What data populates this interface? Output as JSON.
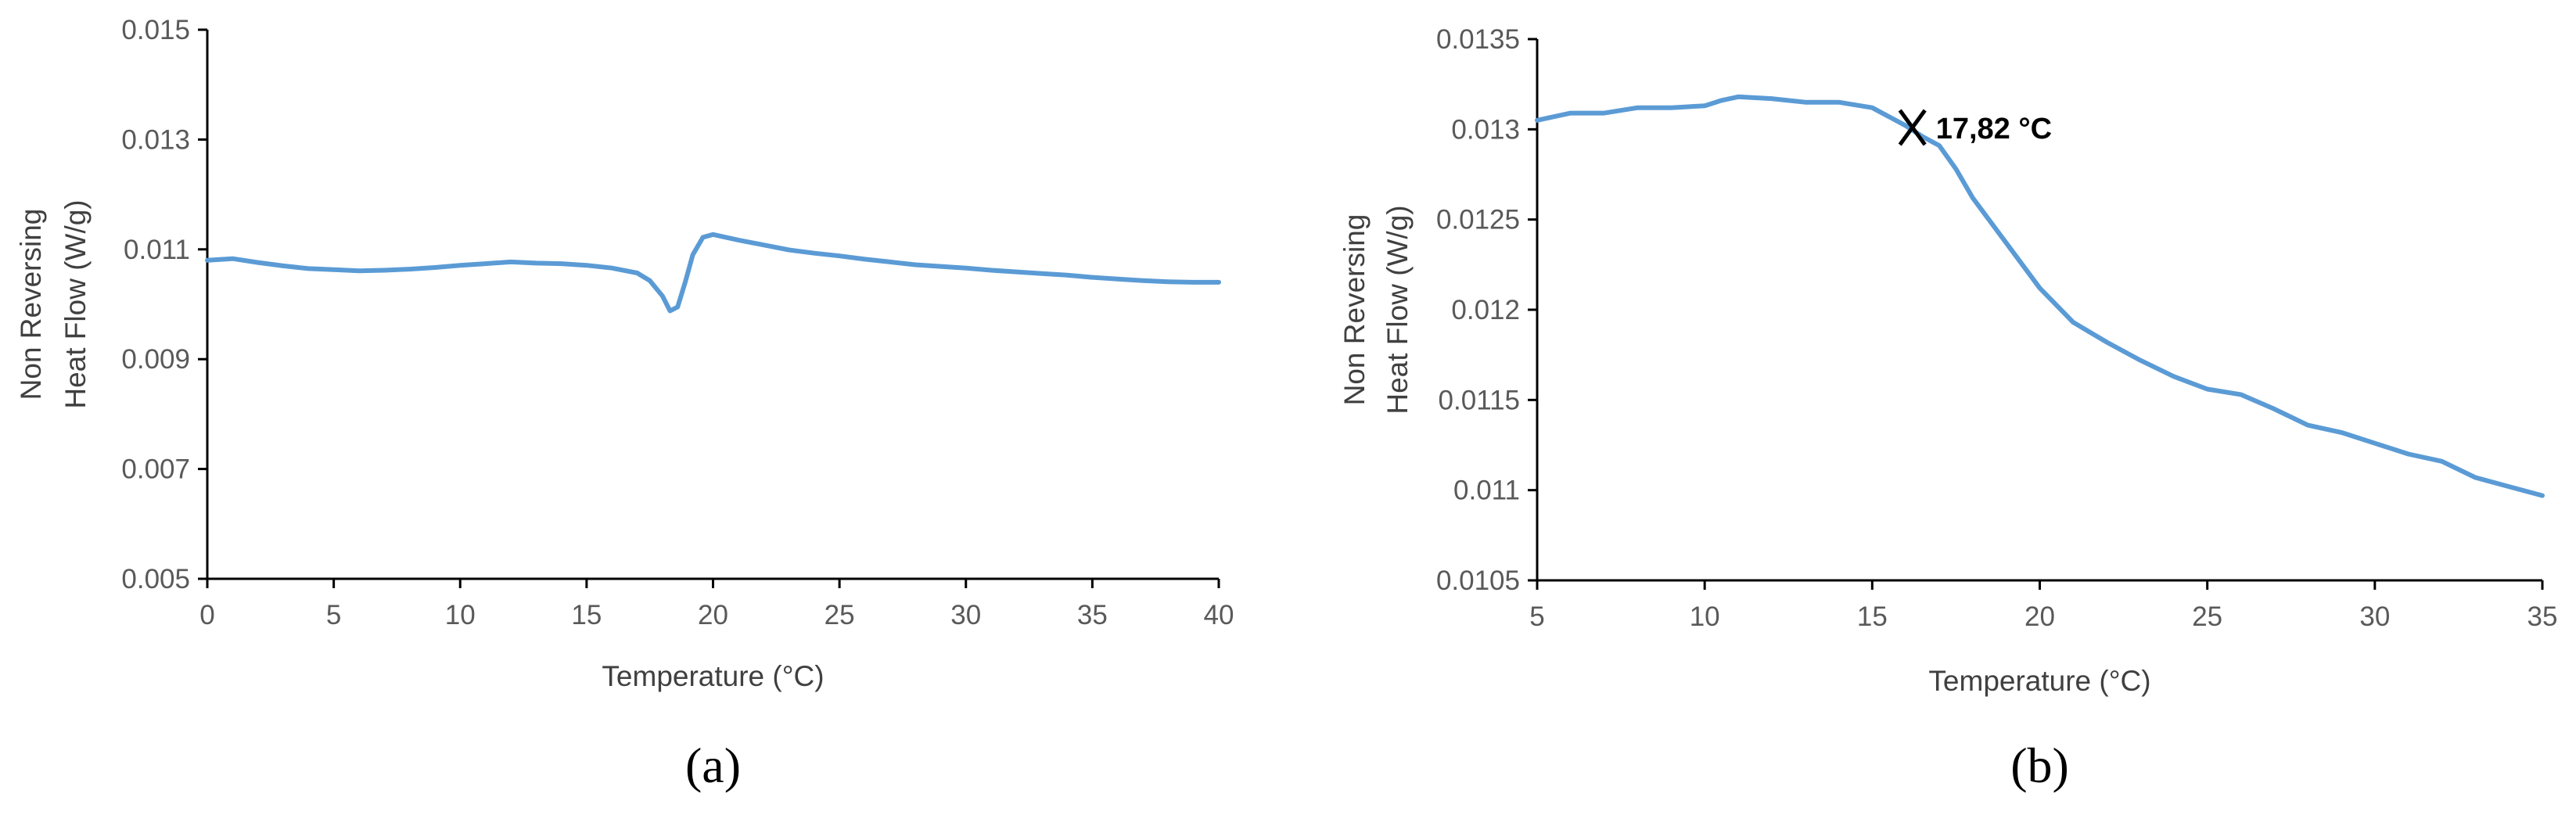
{
  "colors": {
    "series": "#5b9bd5",
    "axis": "#000000",
    "tick_text": "#595959",
    "marker": "#000000"
  },
  "chart_data": [
    {
      "type": "line",
      "panel_label": "(a)",
      "xlabel": "Temperature (°C)",
      "ylabel_lines": [
        "Non Reversing",
        "Heat Flow (W/g)"
      ],
      "xlim": [
        0,
        40
      ],
      "ylim": [
        0.005,
        0.015
      ],
      "xticks": [
        0,
        5,
        10,
        15,
        20,
        25,
        30,
        35,
        40
      ],
      "xtick_labels": [
        "0",
        "5",
        "10",
        "15",
        "20",
        "25",
        "30",
        "35",
        "40"
      ],
      "yticks": [
        0.005,
        0.007,
        0.009,
        0.011,
        0.013,
        0.015
      ],
      "ytick_labels": [
        "0.005",
        "0.007",
        "0.009",
        "0.011",
        "0.013",
        "0.015"
      ],
      "grid": false,
      "series": [
        {
          "x": [
            0,
            1,
            2,
            3,
            4,
            5,
            6,
            7,
            8,
            9,
            10,
            11,
            12,
            13,
            14,
            15,
            16,
            17,
            17.5,
            18,
            18.3,
            18.6,
            18.9,
            19.2,
            19.6,
            20,
            21,
            22,
            23,
            24,
            25,
            26,
            27,
            28,
            29,
            30,
            31,
            32,
            33,
            34,
            35,
            36,
            37,
            38,
            39,
            40
          ],
          "y": [
            0.0108,
            0.01083,
            0.01076,
            0.0107,
            0.01065,
            0.01063,
            0.01061,
            0.01062,
            0.01064,
            0.01067,
            0.01071,
            0.01074,
            0.01077,
            0.01075,
            0.01074,
            0.01071,
            0.01066,
            0.01057,
            0.01043,
            0.01015,
            0.00988,
            0.00995,
            0.0104,
            0.0109,
            0.01122,
            0.01127,
            0.01117,
            0.01108,
            0.01099,
            0.01093,
            0.01088,
            0.01082,
            0.01077,
            0.01072,
            0.01069,
            0.01066,
            0.01062,
            0.01059,
            0.01056,
            0.01053,
            0.01049,
            0.01046,
            0.01043,
            0.01041,
            0.0104,
            0.0104
          ]
        }
      ]
    },
    {
      "type": "line",
      "panel_label": "(b)",
      "xlabel": "Temperature (°C)",
      "ylabel_lines": [
        "Non Reversing",
        "Heat Flow (W/g)"
      ],
      "xlim": [
        5,
        35
      ],
      "ylim": [
        0.0105,
        0.0135
      ],
      "xticks": [
        5,
        10,
        15,
        20,
        25,
        30,
        35
      ],
      "xtick_labels": [
        "5",
        "10",
        "15",
        "20",
        "25",
        "30",
        "35"
      ],
      "yticks": [
        0.0105,
        0.011,
        0.0115,
        0.012,
        0.0125,
        0.013,
        0.0135
      ],
      "ytick_labels": [
        "0.0105",
        "0.011",
        "0.0115",
        "0.012",
        "0.0125",
        "0.013",
        "0.0135"
      ],
      "grid": false,
      "annotation": {
        "text": "17,82 °C",
        "x": 16.2,
        "y": 0.01301
      },
      "series": [
        {
          "x": [
            5,
            6,
            7,
            8,
            9,
            10,
            10.5,
            11,
            12,
            13,
            14,
            15,
            16,
            16.5,
            17,
            17.5,
            18,
            19,
            20,
            21,
            22,
            23,
            24,
            25,
            26,
            27,
            28,
            29,
            30,
            31,
            32,
            33,
            34,
            35
          ],
          "y": [
            0.01305,
            0.01309,
            0.01309,
            0.01312,
            0.01312,
            0.01313,
            0.01316,
            0.01318,
            0.01317,
            0.01315,
            0.01315,
            0.01312,
            0.01302,
            0.01296,
            0.01291,
            0.01278,
            0.01262,
            0.01237,
            0.01212,
            0.01193,
            0.01182,
            0.01172,
            0.01163,
            0.01156,
            0.01153,
            0.01145,
            0.01136,
            0.01132,
            0.01126,
            0.0112,
            0.01116,
            0.01107,
            0.01102,
            0.01097
          ]
        }
      ]
    }
  ]
}
